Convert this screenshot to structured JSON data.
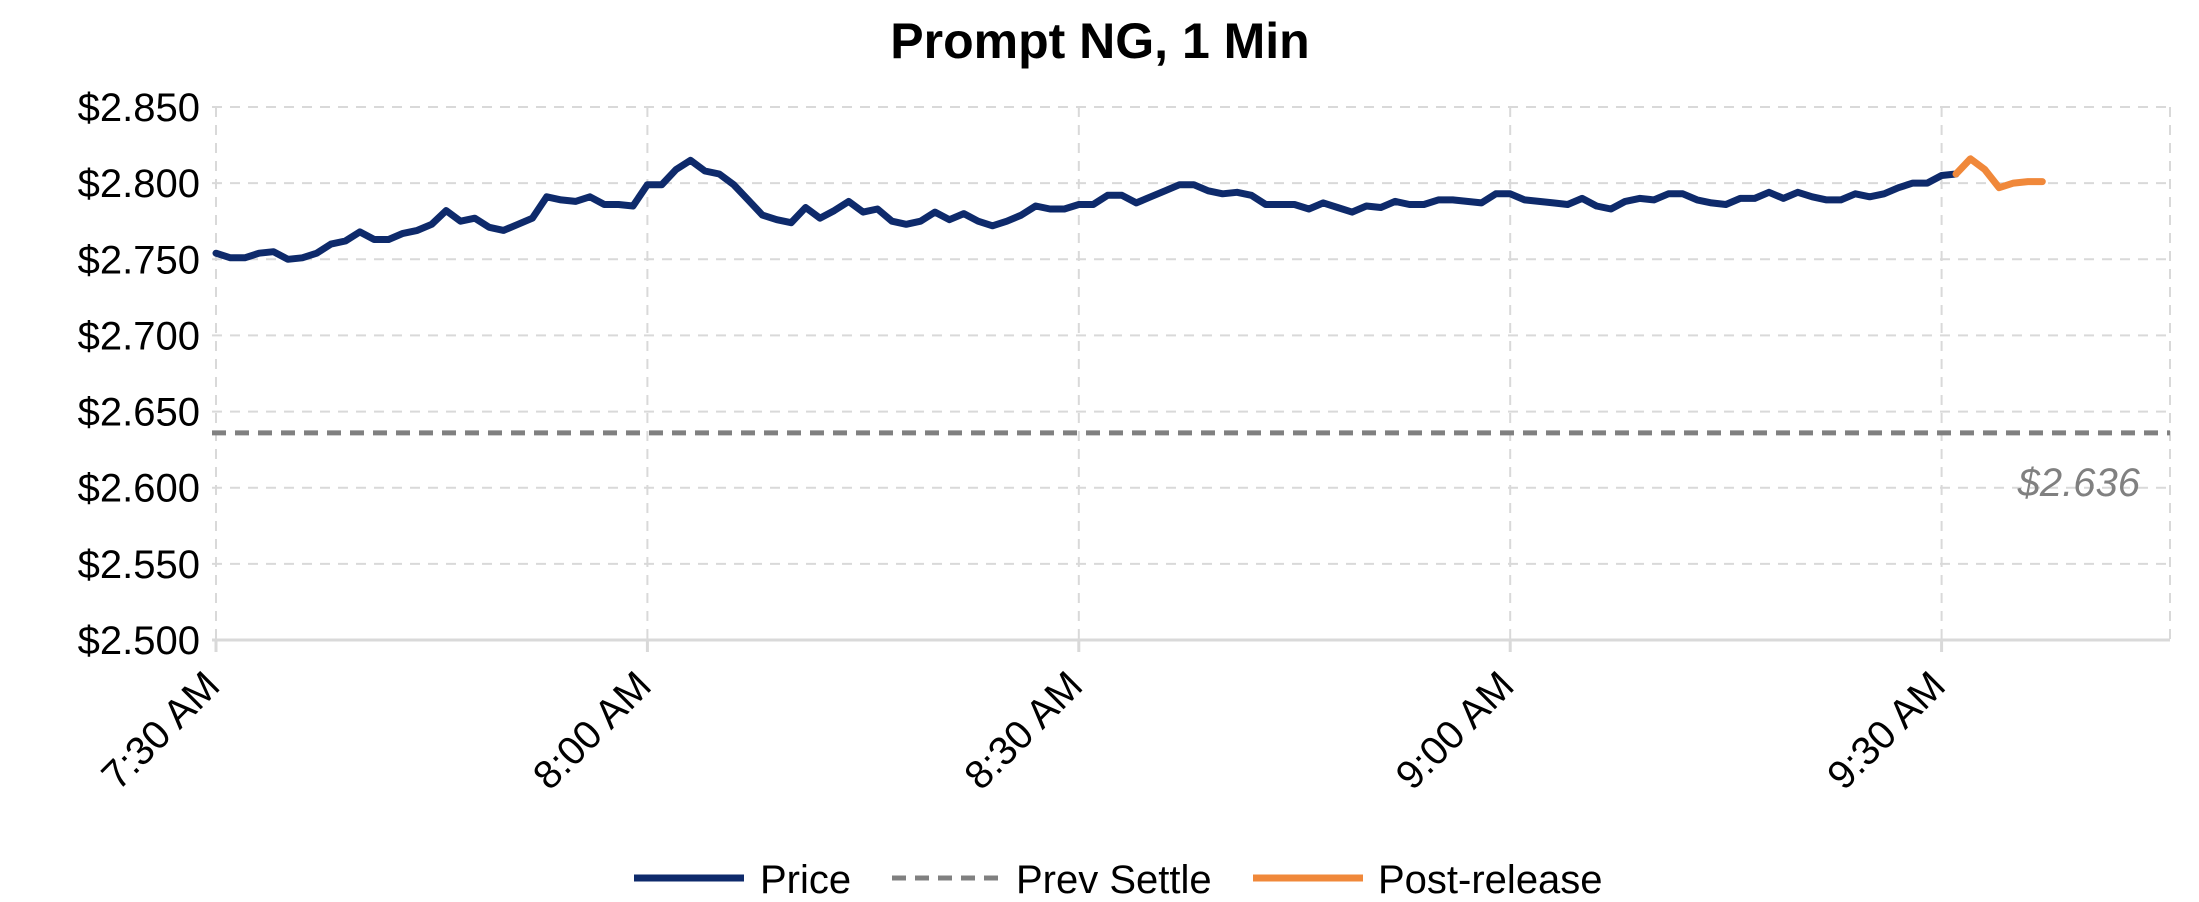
{
  "chart_data": {
    "type": "line",
    "title": "Prompt NG, 1 Min",
    "xlabel": "",
    "ylabel": "",
    "ylim": [
      2.5,
      2.85
    ],
    "y_ticks": [
      "$2.500",
      "$2.550",
      "$2.600",
      "$2.650",
      "$2.700",
      "$2.750",
      "$2.800",
      "$2.850"
    ],
    "x_ticks": [
      "7:30 AM",
      "8:00 AM",
      "8:30 AM",
      "9:00 AM",
      "9:30 AM"
    ],
    "x_range_minutes": [
      0,
      136
    ],
    "grid": true,
    "legend_position": "bottom",
    "reference_line": {
      "name": "Prev Settle",
      "value": 2.636,
      "label": "$2.636",
      "color": "#808080"
    },
    "series": [
      {
        "name": "Price",
        "color": "#0e2a6b",
        "x_minutes": [
          0,
          1,
          2,
          3,
          4,
          5,
          6,
          7,
          8,
          9,
          10,
          11,
          12,
          13,
          14,
          15,
          16,
          17,
          18,
          19,
          20,
          21,
          22,
          23,
          24,
          25,
          26,
          27,
          28,
          29,
          30,
          31,
          32,
          33,
          34,
          35,
          36,
          37,
          38,
          39,
          40,
          41,
          42,
          43,
          44,
          45,
          46,
          47,
          48,
          49,
          50,
          51,
          52,
          53,
          54,
          55,
          56,
          57,
          58,
          59,
          60,
          61,
          62,
          63,
          64,
          65,
          66,
          67,
          68,
          69,
          70,
          71,
          72,
          73,
          74,
          75,
          76,
          77,
          78,
          79,
          80,
          81,
          82,
          83,
          84,
          85,
          86,
          87,
          88,
          89,
          90,
          91,
          92,
          93,
          94,
          95,
          96,
          97,
          98,
          99,
          100,
          101,
          102,
          103,
          104,
          105,
          106,
          107,
          108,
          109,
          110,
          111,
          112,
          113,
          114,
          115,
          116,
          117,
          118,
          119,
          120,
          121
        ],
        "values": [
          2.754,
          2.751,
          2.751,
          2.754,
          2.755,
          2.75,
          2.751,
          2.754,
          2.76,
          2.762,
          2.768,
          2.763,
          2.763,
          2.767,
          2.769,
          2.773,
          2.782,
          2.775,
          2.777,
          2.771,
          2.769,
          2.773,
          2.777,
          2.791,
          2.789,
          2.788,
          2.791,
          2.786,
          2.786,
          2.785,
          2.799,
          2.799,
          2.809,
          2.815,
          2.808,
          2.806,
          2.799,
          2.789,
          2.779,
          2.776,
          2.774,
          2.784,
          2.777,
          2.782,
          2.788,
          2.781,
          2.783,
          2.775,
          2.773,
          2.775,
          2.781,
          2.776,
          2.78,
          2.775,
          2.772,
          2.775,
          2.779,
          2.785,
          2.783,
          2.783,
          2.786,
          2.786,
          2.792,
          2.792,
          2.787,
          2.791,
          2.795,
          2.799,
          2.799,
          2.795,
          2.793,
          2.794,
          2.792,
          2.786,
          2.786,
          2.786,
          2.783,
          2.787,
          2.784,
          2.781,
          2.785,
          2.784,
          2.788,
          2.786,
          2.786,
          2.789,
          2.789,
          2.788,
          2.787,
          2.793,
          2.793,
          2.789,
          2.788,
          2.787,
          2.786,
          2.79,
          2.785,
          2.783,
          2.788,
          2.79,
          2.789,
          2.793,
          2.793,
          2.789,
          2.787,
          2.786,
          2.79,
          2.79,
          2.794,
          2.79,
          2.794,
          2.791,
          2.789,
          2.789,
          2.793,
          2.791,
          2.793,
          2.797,
          2.8,
          2.8,
          2.805,
          2.806
        ]
      },
      {
        "name": "Post-release",
        "color": "#f0883a",
        "x_minutes": [
          121,
          122,
          123,
          124,
          125,
          126,
          127
        ],
        "values": [
          2.806,
          2.816,
          2.809,
          2.797,
          2.8,
          2.801,
          2.801
        ]
      }
    ]
  },
  "legend": {
    "items": [
      {
        "label": "Price",
        "color": "#0e2a6b",
        "dashed": false
      },
      {
        "label": "Prev Settle",
        "color": "#808080",
        "dashed": true
      },
      {
        "label": "Post-release",
        "color": "#f0883a",
        "dashed": false
      }
    ]
  }
}
